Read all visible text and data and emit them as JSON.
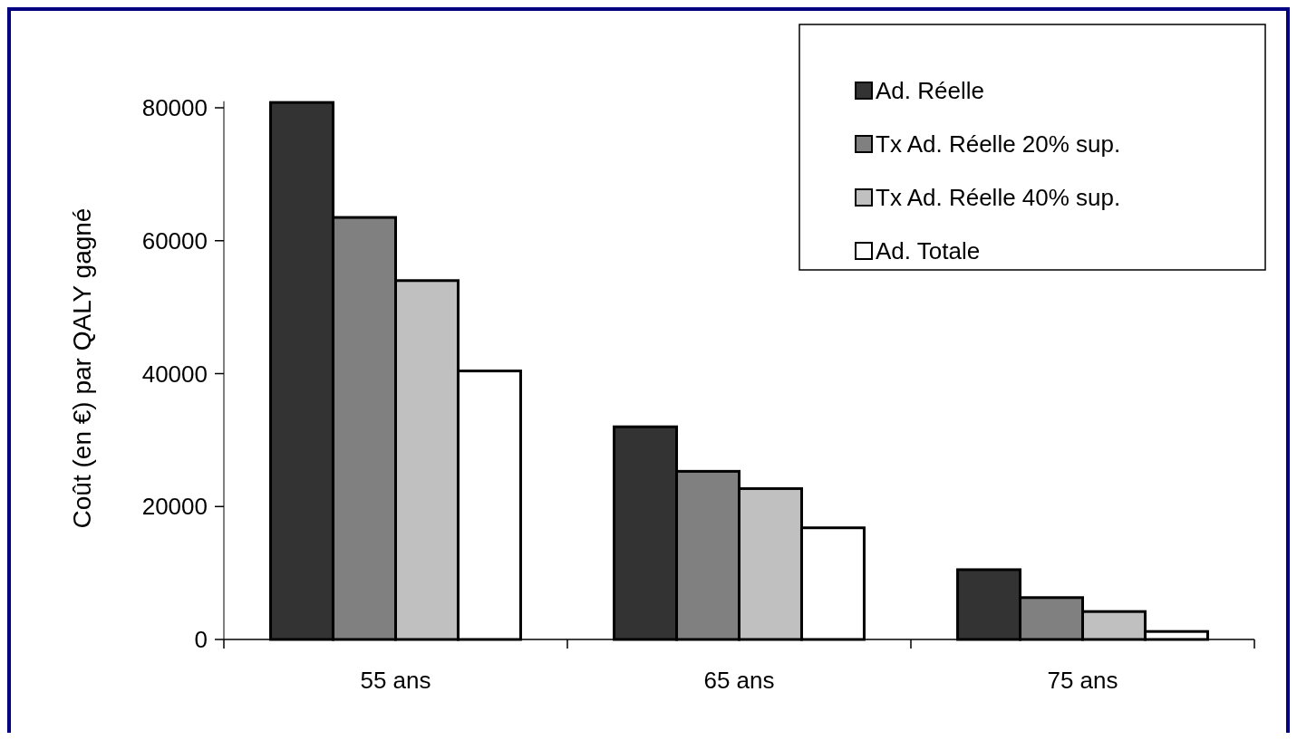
{
  "chart_data": {
    "type": "bar",
    "ylabel": "Coût (en €) par QALY gagné",
    "categories": [
      "55 ans",
      "65 ans",
      "75 ans"
    ],
    "series": [
      {
        "name": "Ad. Réelle",
        "color": "#333333",
        "values": [
          80800,
          32000,
          10500
        ]
      },
      {
        "name": "Tx Ad. Réelle 20% sup.",
        "color": "#808080",
        "values": [
          63500,
          25300,
          6300
        ]
      },
      {
        "name": "Tx Ad. Réelle 40% sup.",
        "color": "#c0c0c0",
        "values": [
          54000,
          22700,
          4200
        ]
      },
      {
        "name": "Ad. Totale",
        "color": "#ffffff",
        "values": [
          40400,
          16800,
          1200
        ]
      }
    ],
    "ylim": [
      0,
      81000
    ],
    "yticks": [
      0,
      20000,
      40000,
      60000,
      80000
    ],
    "grid": false,
    "legend": "top right"
  }
}
